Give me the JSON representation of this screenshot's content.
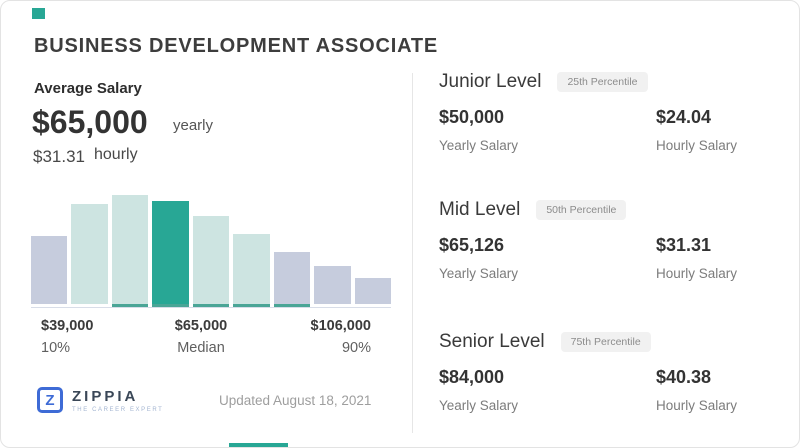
{
  "header": {
    "title": "BUSINESS DEVELOPMENT ASSOCIATE"
  },
  "summary": {
    "label": "Average Salary",
    "yearly_amount": "$65,000",
    "yearly_unit": "yearly",
    "hourly_amount": "$31.31",
    "hourly_unit": "hourly"
  },
  "chart_data": {
    "type": "bar",
    "title": "Salary distribution histogram",
    "values": [
      68,
      100,
      109,
      103,
      88,
      70,
      52,
      38,
      26
    ],
    "values_unit": "relative frequency (bar heights in px, y-axis unlabeled)",
    "bar_colors": [
      "gray",
      "teal_light",
      "teal_light",
      "teal_dark",
      "teal_light",
      "teal_light",
      "gray",
      "gray",
      "gray"
    ],
    "underline_bars": [
      2,
      3,
      4,
      5,
      6
    ],
    "median_bar_index": 3,
    "x_ticks": [
      {
        "value": "$39,000",
        "label": "10%"
      },
      {
        "value": "$65,000",
        "label": "Median"
      },
      {
        "value": "$106,000",
        "label": "90%"
      }
    ],
    "legend_position": "none",
    "grid": false
  },
  "colors": {
    "teal_dark": "#28a795",
    "teal_light": "#cde4e1",
    "bar_gray": "#c6ccdd",
    "underline": "#4aa596",
    "logo_blue": "#3e6bd6"
  },
  "footer": {
    "logo_letter": "Z",
    "logo_name": "ZIPPIA",
    "logo_tagline": "THE CAREER EXPERT",
    "updated": "Updated August 18, 2021"
  },
  "levels": [
    {
      "name": "Junior Level",
      "badge": "25th Percentile",
      "yearly": "$50,000",
      "yearly_label": "Yearly Salary",
      "hourly": "$24.04",
      "hourly_label": "Hourly Salary"
    },
    {
      "name": "Mid Level",
      "badge": "50th Percentile",
      "yearly": "$65,126",
      "yearly_label": "Yearly Salary",
      "hourly": "$31.31",
      "hourly_label": "Hourly Salary"
    },
    {
      "name": "Senior Level",
      "badge": "75th Percentile",
      "yearly": "$84,000",
      "yearly_label": "Yearly Salary",
      "hourly": "$40.38",
      "hourly_label": "Hourly Salary"
    }
  ]
}
